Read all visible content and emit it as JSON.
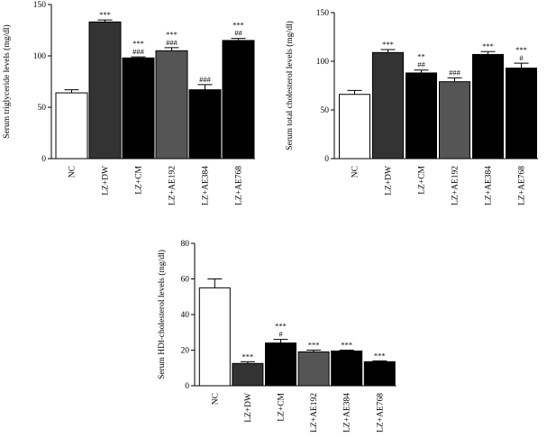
{
  "chart_data": [
    {
      "type": "bar",
      "y_label": "Serum triglyceride levels (mg/dl)",
      "categories": [
        "NC",
        "LZ+DW",
        "LZ+CM",
        "LZ+AE192",
        "LZ+AE384",
        "LZ+AE768"
      ],
      "values": [
        64,
        133,
        98,
        105,
        67,
        115
      ],
      "errors": [
        3,
        2,
        1,
        3,
        5,
        2
      ],
      "colors": [
        "#ffffff",
        "#333333",
        "#000000",
        "#555555",
        "#000000",
        "#000000"
      ],
      "annotations": [
        null,
        [
          "***"
        ],
        [
          "***",
          "###"
        ],
        [
          "***",
          "###"
        ],
        [
          "###"
        ],
        [
          "***",
          "##"
        ]
      ],
      "ylim": [
        0,
        150
      ],
      "yticks": [
        0,
        50,
        100,
        150
      ]
    },
    {
      "type": "bar",
      "y_label": "Serum total cholesterol levels (mg/dl)",
      "categories": [
        "NC",
        "LZ+DW",
        "LZ+CM",
        "LZ+AE192",
        "LZ+AE384",
        "LZ+AE768"
      ],
      "values": [
        66,
        109,
        88,
        79,
        107,
        93
      ],
      "errors": [
        4,
        3,
        3,
        4,
        3,
        5
      ],
      "colors": [
        "#ffffff",
        "#333333",
        "#000000",
        "#555555",
        "#000000",
        "#000000"
      ],
      "annotations": [
        null,
        [
          "***"
        ],
        [
          "**",
          "##"
        ],
        [
          "###"
        ],
        [
          "***"
        ],
        [
          "***",
          "#"
        ]
      ],
      "ylim": [
        0,
        150
      ],
      "yticks": [
        0,
        50,
        100,
        150
      ]
    },
    {
      "type": "bar",
      "y_label": "Serum HDl-cholesterol levels (mg/dl)",
      "categories": [
        "NC",
        "LZ+DW",
        "LZ+CM",
        "LZ+AE192",
        "LZ+AE384",
        "LZ+AE768"
      ],
      "values": [
        55,
        12.5,
        24,
        19,
        19.5,
        13.5
      ],
      "errors": [
        5,
        1,
        2,
        1,
        0.5,
        0.5
      ],
      "colors": [
        "#ffffff",
        "#333333",
        "#000000",
        "#555555",
        "#000000",
        "#000000"
      ],
      "annotations": [
        null,
        [
          "***"
        ],
        [
          "***",
          "#"
        ],
        [
          "***"
        ],
        [
          "***"
        ],
        [
          "***"
        ]
      ],
      "ylim": [
        0,
        80
      ],
      "yticks": [
        0,
        20,
        40,
        60,
        80
      ]
    }
  ]
}
